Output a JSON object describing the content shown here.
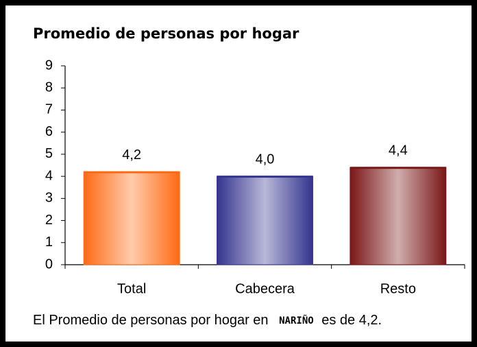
{
  "chart_data": {
    "type": "bar",
    "title": "Promedio de personas por hogar",
    "categories": [
      "Total",
      "Cabecera",
      "Resto"
    ],
    "values": [
      4.2,
      4.0,
      4.4
    ],
    "value_labels": [
      "4,2",
      "4,0",
      "4,4"
    ],
    "colors": [
      "#ff6a13",
      "#34348f",
      "#7a1616"
    ],
    "ylim": [
      0,
      9
    ],
    "yticks": [
      0,
      1,
      2,
      3,
      4,
      5,
      6,
      7,
      8,
      9
    ],
    "grid": false
  },
  "footnote": {
    "before": "El Promedio de personas por hogar en",
    "emphasis": "NARIÑO",
    "after": "es de 4,2."
  }
}
